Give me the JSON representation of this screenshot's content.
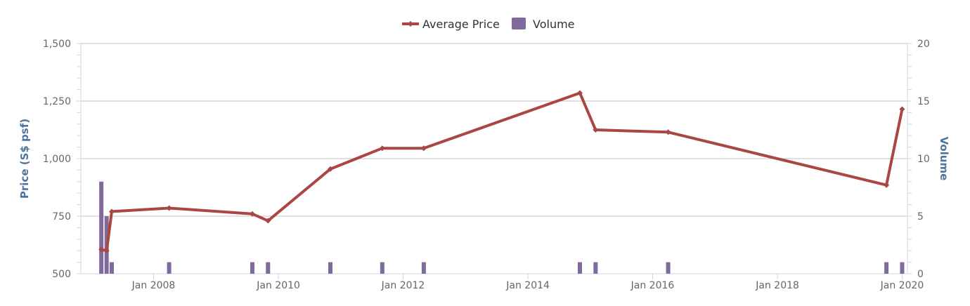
{
  "chart_data": {
    "type": "line",
    "legend": {
      "position": "top-center",
      "items": [
        {
          "name": "Average Price",
          "color": "#aa4643",
          "kind": "line"
        },
        {
          "name": "Volume",
          "color": "#80699b",
          "kind": "bar"
        }
      ]
    },
    "x_axis": {
      "type": "datetime",
      "range": [
        "2006-11-01",
        "2020-02-01"
      ],
      "tick_labels": [
        "Jan 2008",
        "Jan 2010",
        "Jan 2012",
        "Jan 2014",
        "Jan 2016",
        "Jan 2018",
        "Jan 2020"
      ],
      "tick_dates": [
        "2008-01-01",
        "2010-01-01",
        "2012-01-01",
        "2014-01-01",
        "2016-01-01",
        "2018-01-01",
        "2020-01-01"
      ]
    },
    "y_axis_left": {
      "title": "Price (S$ psf)",
      "range": [
        500,
        1500
      ],
      "tick_labels": [
        "500",
        "750",
        "1,000",
        "1,250",
        "1,500"
      ],
      "tick_values": [
        500,
        750,
        1000,
        1250,
        1500
      ]
    },
    "y_axis_right": {
      "title": "Volume",
      "range": [
        0,
        20
      ],
      "tick_labels": [
        "0",
        "5",
        "10",
        "15",
        "20"
      ],
      "tick_values": [
        0,
        5,
        10,
        15,
        20
      ]
    },
    "grid": true,
    "series": [
      {
        "name": "Average Price",
        "axis": "left",
        "type": "line",
        "color": "#aa4643",
        "points": [
          {
            "x": "2007-03-01",
            "y": 605
          },
          {
            "x": "2007-04-01",
            "y": 600
          },
          {
            "x": "2007-05-01",
            "y": 770
          },
          {
            "x": "2008-04-01",
            "y": 785
          },
          {
            "x": "2009-08-01",
            "y": 760
          },
          {
            "x": "2009-11-01",
            "y": 730
          },
          {
            "x": "2010-11-01",
            "y": 955
          },
          {
            "x": "2011-09-01",
            "y": 1045
          },
          {
            "x": "2012-05-01",
            "y": 1045
          },
          {
            "x": "2014-11-01",
            "y": 1285
          },
          {
            "x": "2015-02-01",
            "y": 1125
          },
          {
            "x": "2016-04-01",
            "y": 1115
          },
          {
            "x": "2019-10-01",
            "y": 885
          },
          {
            "x": "2020-01-01",
            "y": 1215
          }
        ]
      },
      {
        "name": "Volume",
        "axis": "right",
        "type": "bar",
        "color": "#80699b",
        "points": [
          {
            "x": "2007-03-01",
            "y": 8
          },
          {
            "x": "2007-04-01",
            "y": 5
          },
          {
            "x": "2007-05-01",
            "y": 1
          },
          {
            "x": "2008-04-01",
            "y": 1
          },
          {
            "x": "2009-08-01",
            "y": 1
          },
          {
            "x": "2009-11-01",
            "y": 1
          },
          {
            "x": "2010-11-01",
            "y": 1
          },
          {
            "x": "2011-09-01",
            "y": 1
          },
          {
            "x": "2012-05-01",
            "y": 1
          },
          {
            "x": "2014-11-01",
            "y": 1
          },
          {
            "x": "2015-02-01",
            "y": 1
          },
          {
            "x": "2016-04-01",
            "y": 1
          },
          {
            "x": "2019-10-01",
            "y": 1
          },
          {
            "x": "2020-01-01",
            "y": 1
          }
        ]
      }
    ]
  }
}
